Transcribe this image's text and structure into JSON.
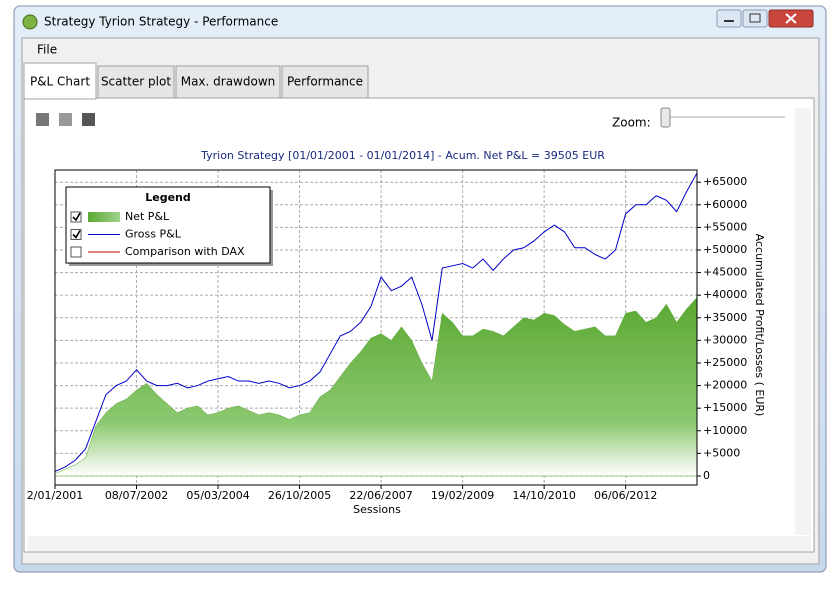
{
  "window": {
    "title": "Strategy Tyrion Strategy - Performance",
    "menu": [
      "File"
    ],
    "tabs": [
      "P&L Chart",
      "Scatter plot",
      "Max. drawdown",
      "Performance"
    ],
    "zoom_label": "Zoom:"
  },
  "chart_data": {
    "type": "line",
    "title": "Tyrion Strategy  [01/01/2001 - 01/01/2014] - Acum. Net P&L = 39505 EUR",
    "x_label": "Sessions",
    "y_label": "Accumulated Profit/Losses ( EUR)",
    "categories": [
      "2/01/2001",
      null,
      null,
      null,
      null,
      null,
      null,
      null,
      "08/07/2002",
      null,
      null,
      null,
      null,
      null,
      null,
      null,
      "05/03/2004",
      null,
      null,
      null,
      null,
      null,
      null,
      null,
      "26/10/2005",
      null,
      null,
      null,
      null,
      null,
      null,
      null,
      "22/06/2007",
      null,
      null,
      null,
      null,
      null,
      null,
      null,
      "19/02/2009",
      null,
      null,
      null,
      null,
      null,
      null,
      null,
      "14/10/2010",
      null,
      null,
      null,
      null,
      null,
      null,
      null,
      "06/06/2012",
      null,
      null,
      null,
      null,
      null,
      null,
      null
    ],
    "series": [
      {
        "name": "Net P&L",
        "color": "#5aa832",
        "style": "area",
        "checked": true,
        "values": [
          500,
          1500,
          2500,
          4000,
          11000,
          14000,
          16000,
          17000,
          19000,
          20500,
          18000,
          16000,
          14000,
          15000,
          15500,
          13500,
          14000,
          15000,
          15500,
          14500,
          13500,
          14000,
          13500,
          12500,
          13500,
          14000,
          17500,
          19000,
          22000,
          25000,
          27500,
          30500,
          31500,
          30000,
          33000,
          30000,
          25000,
          21000,
          36000,
          34000,
          31000,
          31000,
          32500,
          32000,
          31000,
          33000,
          35000,
          34500,
          36000,
          35500,
          33500,
          32000,
          32500,
          33000,
          31000,
          31000,
          36000,
          36500,
          34000,
          35000,
          38000,
          34000,
          37000,
          39500
        ]
      },
      {
        "name": "Gross P&L",
        "color": "#0000cc",
        "style": "line",
        "checked": true,
        "values": [
          1000,
          2000,
          3500,
          6000,
          12000,
          18000,
          20000,
          21000,
          23500,
          21000,
          20000,
          20000,
          20500,
          19500,
          20000,
          21000,
          21500,
          22000,
          21000,
          21000,
          20500,
          21000,
          20500,
          19500,
          20000,
          21000,
          23000,
          27000,
          31000,
          32000,
          34000,
          37500,
          44000,
          41000,
          42000,
          44000,
          38000,
          30000,
          46000,
          46500,
          47000,
          46000,
          48000,
          45500,
          48000,
          50000,
          50500,
          52000,
          54000,
          55500,
          54000,
          50500,
          50500,
          49000,
          48000,
          50000,
          58000,
          60000,
          60000,
          62000,
          61000,
          58500,
          63000,
          67000
        ]
      }
    ],
    "legend_title": "Legend",
    "legend_extra": [
      {
        "name": "Comparison with DAX",
        "color": "#cc0000",
        "checked": false
      }
    ],
    "legend_position": "upper left",
    "y_axis_side": "right",
    "ylim": [
      -2000,
      67700
    ],
    "yticks": [
      0,
      {
        "value": 5000,
        "label": "+5000"
      },
      {
        "value": 10000,
        "label": "+10000"
      },
      {
        "value": 15000,
        "label": "+15000"
      },
      {
        "value": 20000,
        "label": "+20000"
      },
      {
        "value": 25000,
        "label": "+25000"
      },
      {
        "value": 30000,
        "label": "+30000"
      },
      {
        "value": 35000,
        "label": "+35000"
      },
      {
        "value": 40000,
        "label": "+40000"
      },
      {
        "value": 45000,
        "label": "+45000"
      },
      {
        "value": 50000,
        "label": "+50000"
      },
      {
        "value": 55000,
        "label": "+55000"
      },
      {
        "value": 60000,
        "label": "+60000"
      },
      {
        "value": 65000,
        "label": "+65000"
      }
    ],
    "grid": true
  }
}
